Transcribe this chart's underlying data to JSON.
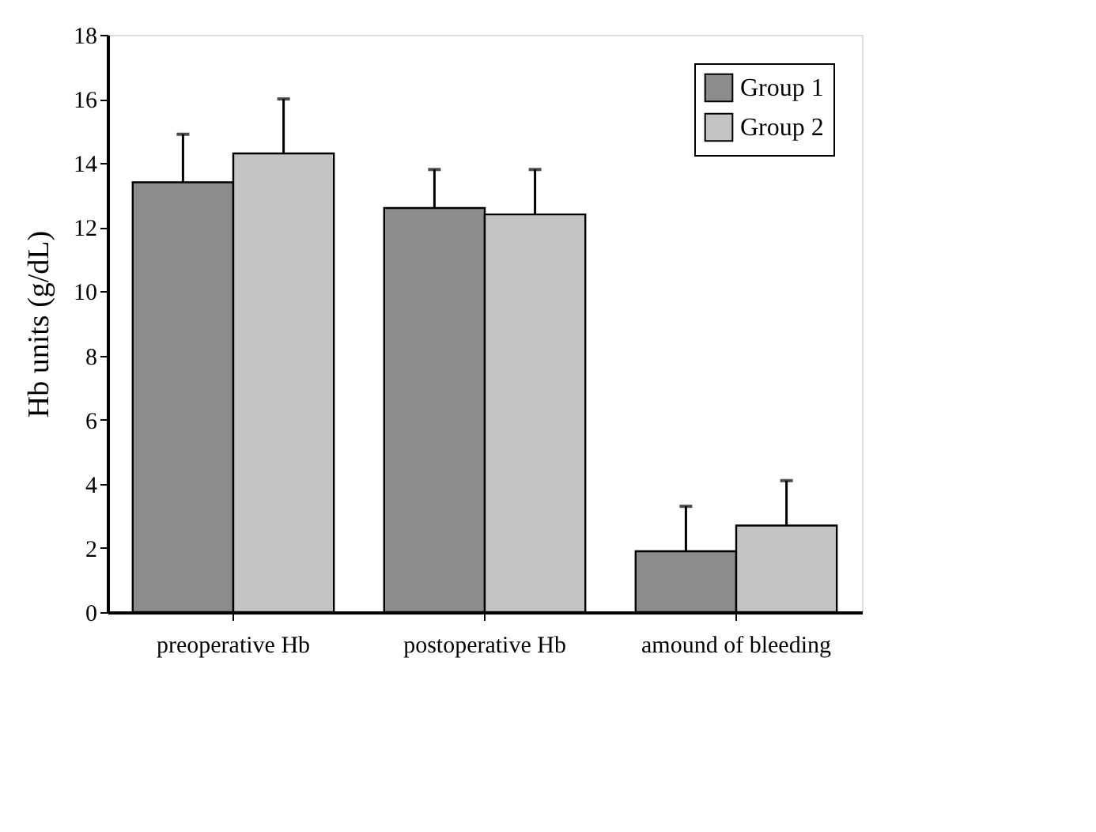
{
  "chart_data": {
    "type": "bar",
    "ylabel": "Hb units (g/dL)",
    "categories": [
      "preoperative Hb",
      "postoperative Hb",
      "amound of bleeding"
    ],
    "series": [
      {
        "name": "Group 1",
        "color": "#8c8c8c",
        "values": [
          13.4,
          12.6,
          1.9
        ],
        "errors": [
          [
            13.4,
            14.9
          ],
          [
            12.6,
            13.8
          ],
          [
            1.9,
            3.3
          ]
        ]
      },
      {
        "name": "Group 2",
        "color": "#c4c4c4",
        "values": [
          14.3,
          12.4,
          2.7
        ],
        "errors": [
          [
            14.3,
            16.0
          ],
          [
            12.4,
            13.8
          ],
          [
            2.7,
            4.1
          ]
        ]
      }
    ],
    "ylim": [
      0,
      18
    ],
    "yticks": [
      0,
      2,
      4,
      6,
      8,
      10,
      12,
      14,
      16,
      18
    ],
    "grid": false,
    "legend": "top right"
  }
}
